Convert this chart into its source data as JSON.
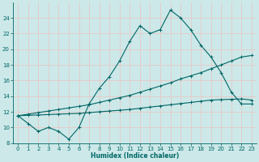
{
  "line1": {
    "x": [
      0,
      1,
      2,
      3,
      4,
      5,
      6,
      7,
      8,
      9,
      10,
      11,
      12,
      13,
      14,
      15,
      16,
      17,
      18,
      19,
      20,
      21,
      22,
      23
    ],
    "y": [
      11.5,
      10.5,
      9.5,
      10,
      9.5,
      8.5,
      10,
      13,
      15,
      16.5,
      18.5,
      21,
      23,
      22,
      22.5,
      25,
      24,
      22.5,
      20.5,
      19,
      17,
      14.5,
      13,
      13
    ]
  },
  "line2": {
    "x": [
      0,
      1,
      2,
      3,
      4,
      5,
      6,
      7,
      8,
      9,
      10,
      11,
      12,
      13,
      14,
      15,
      16,
      17,
      18,
      19,
      20,
      21,
      22,
      23
    ],
    "y": [
      11.5,
      11.7,
      11.9,
      12.1,
      12.3,
      12.5,
      12.7,
      12.9,
      13.2,
      13.5,
      13.8,
      14.1,
      14.5,
      14.9,
      15.3,
      15.7,
      16.2,
      16.6,
      17.0,
      17.5,
      18.0,
      18.5,
      19.0,
      19.2
    ]
  },
  "line3": {
    "x": [
      0,
      1,
      2,
      3,
      4,
      5,
      6,
      7,
      8,
      9,
      10,
      11,
      12,
      13,
      14,
      15,
      16,
      17,
      18,
      19,
      20,
      21,
      22,
      23
    ],
    "y": [
      11.5,
      11.55,
      11.6,
      11.65,
      11.7,
      11.75,
      11.8,
      11.9,
      12.0,
      12.1,
      12.2,
      12.3,
      12.45,
      12.6,
      12.75,
      12.9,
      13.05,
      13.2,
      13.35,
      13.5,
      13.55,
      13.6,
      13.65,
      13.5
    ]
  },
  "bg_color": "#cce8e8",
  "grid_major_color": "#e8c8c8",
  "grid_minor_color": "#e8c8c8",
  "line_color": "#006666",
  "xlabel": "Humidex (Indice chaleur)",
  "xlim": [
    -0.5,
    23.5
  ],
  "ylim": [
    8,
    26
  ],
  "yticks": [
    8,
    10,
    12,
    14,
    16,
    18,
    20,
    22,
    24
  ],
  "xticks": [
    0,
    1,
    2,
    3,
    4,
    5,
    6,
    7,
    8,
    9,
    10,
    11,
    12,
    13,
    14,
    15,
    16,
    17,
    18,
    19,
    20,
    21,
    22,
    23
  ]
}
